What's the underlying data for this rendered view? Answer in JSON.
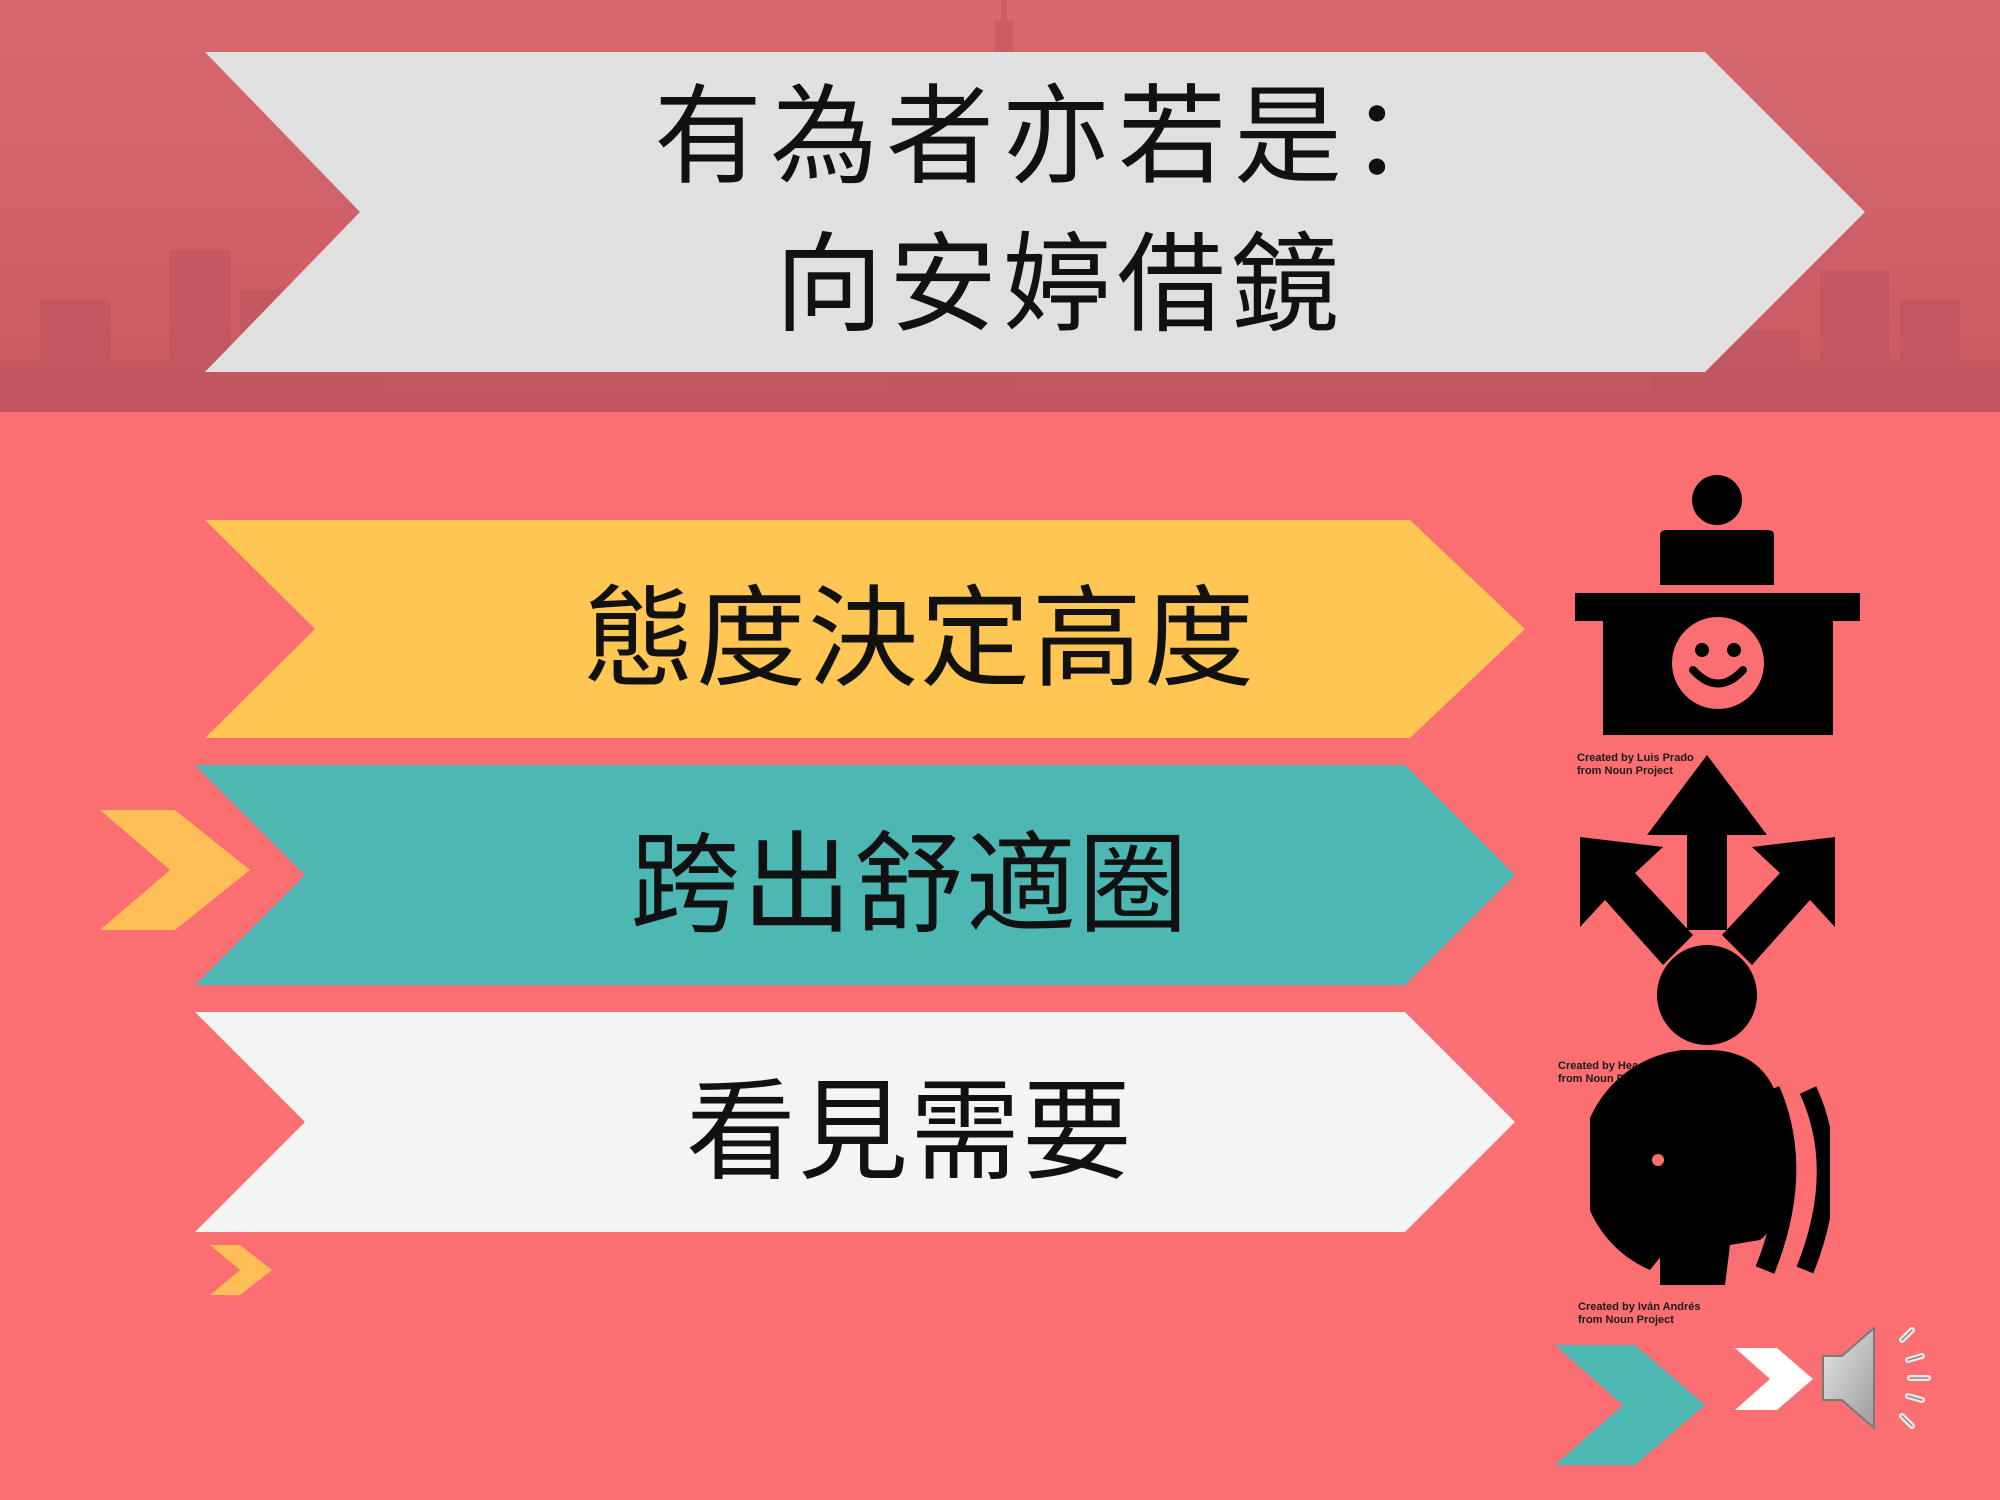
{
  "slide": {
    "title_line1": "有為者亦若是：",
    "title_line2": "向安婷借鏡",
    "items": [
      {
        "label": "態度決定高度",
        "color": "#ffc653"
      },
      {
        "label": "跨出舒適圈",
        "color": "#4db8b3"
      },
      {
        "label": "看見需要",
        "color": "#f2f2f2"
      }
    ],
    "credits": [
      {
        "line1": "Created by Luis Prado",
        "line2": "from Noun Project"
      },
      {
        "line1": "Created by Hea",
        "line2": "from Noun P"
      },
      {
        "line1": "Created by Iván Andrés",
        "line2": "from Noun Project"
      }
    ],
    "icons": [
      "reception-desk-smile-icon",
      "decision-arrows-person-icon",
      "hearing-head-icon",
      "speaker-icon"
    ],
    "colors": {
      "background": "#fb6f73",
      "header_band": "#d0636a",
      "title_arrow": "#e0e0e0",
      "chevron_yellow": "#ffc653",
      "chevron_teal": "#4db8b3",
      "chevron_white": "#ffffff"
    }
  }
}
